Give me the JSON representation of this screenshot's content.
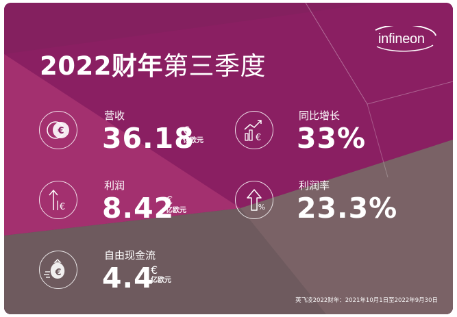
{
  "title": {
    "bold": "2022财年",
    "thin": "第三季度"
  },
  "brand": {
    "logo_text": "infineon"
  },
  "metrics": [
    {
      "label": "营收",
      "value": "36.18",
      "currency": "€",
      "unit": "亿欧元",
      "icon": "coins-euro-icon"
    },
    {
      "label": "同比增长",
      "value": "33%",
      "icon": "growth-chart-euro-icon"
    },
    {
      "label": "利润",
      "value": "8.42",
      "currency": "€",
      "unit": "亿欧元",
      "icon": "up-arrow-euro-icon"
    },
    {
      "label": "利润率",
      "value": "23.3%",
      "icon": "up-arrow-percent-icon"
    },
    {
      "label": "自由现金流",
      "value": "4.4",
      "currency": "€",
      "unit": "亿欧元",
      "icon": "money-bag-euro-icon"
    }
  ],
  "footnote": "英飞凌2022财年：2021年10月1日至2022年9月30日",
  "colors": {
    "plum": "#8a1f62",
    "magenta": "#a3306f",
    "taupe": "#6e5a5e",
    "white": "#ffffff"
  }
}
